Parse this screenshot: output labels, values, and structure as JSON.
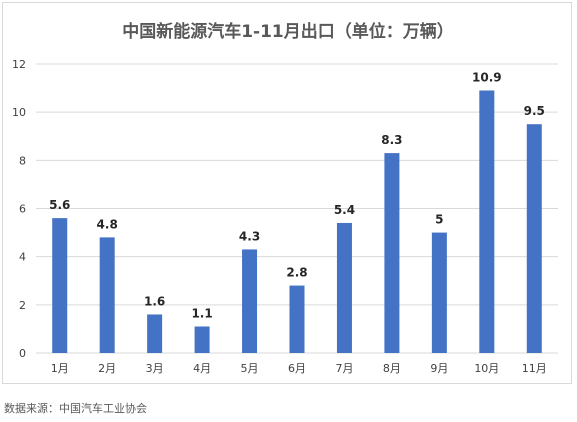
{
  "chart_data": {
    "type": "bar",
    "title": "中国新能源汽车1-11月出口（单位：万辆）",
    "categories": [
      "1月",
      "2月",
      "3月",
      "4月",
      "5月",
      "6月",
      "7月",
      "8月",
      "9月",
      "10月",
      "11月"
    ],
    "values": [
      5.6,
      4.8,
      1.6,
      1.1,
      4.3,
      2.8,
      5.4,
      8.3,
      5,
      10.9,
      9.5
    ],
    "data_labels": [
      "5.6",
      "4.8",
      "1.6",
      "1.1",
      "4.3",
      "2.8",
      "5.4",
      "8.3",
      "5",
      "10.9",
      "9.5"
    ],
    "y_ticks": [
      "0",
      "2",
      "4",
      "6",
      "8",
      "10",
      "12"
    ],
    "ylim": [
      0,
      12
    ],
    "grid": true,
    "legend": "none",
    "bar_color": "#4472C4"
  },
  "source_note": "数据来源：中国汽车工业协会"
}
